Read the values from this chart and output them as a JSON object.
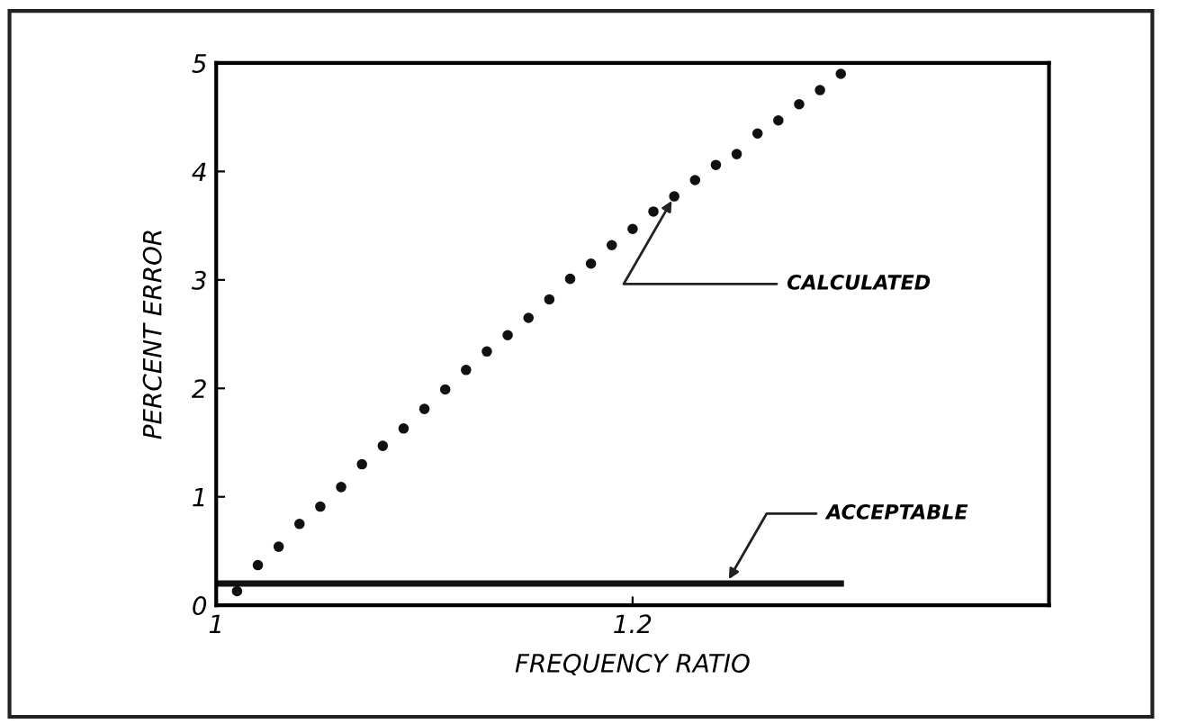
{
  "chart_data": {
    "type": "scatter",
    "xlabel": "FREQUENCY RATIO",
    "ylabel": "PERCENT ERROR",
    "xlim": [
      1,
      1.4
    ],
    "ylim": [
      0,
      5
    ],
    "xticks": [
      1,
      1.2
    ],
    "yticks": [
      0,
      1,
      2,
      3,
      4,
      5
    ],
    "grid": false,
    "legend": false,
    "series": [
      {
        "marker": "circle",
        "color": "#111111",
        "x": [
          1.01,
          1.02,
          1.03,
          1.04,
          1.05,
          1.06,
          1.07,
          1.08,
          1.09,
          1.1,
          1.11,
          1.12,
          1.13,
          1.14,
          1.15,
          1.16,
          1.17,
          1.18,
          1.19,
          1.2,
          1.21,
          1.22,
          1.23,
          1.24,
          1.25,
          1.26,
          1.27,
          1.28,
          1.29,
          1.3
        ],
        "values": [
          0.13,
          0.37,
          0.54,
          0.75,
          0.91,
          1.09,
          1.3,
          1.47,
          1.63,
          1.81,
          1.99,
          2.17,
          2.34,
          2.49,
          2.65,
          2.82,
          3.01,
          3.15,
          3.32,
          3.47,
          3.63,
          3.77,
          3.92,
          4.06,
          4.16,
          4.35,
          4.47,
          4.62,
          4.75,
          4.9
        ]
      },
      {
        "type": "line",
        "color": "#111111",
        "line_style": "solid",
        "x": [
          1,
          1.3
        ],
        "values": [
          0.2,
          0.2
        ]
      }
    ],
    "annotations": [
      {
        "text": "CALCULATED",
        "x": 1.22,
        "y": 3.77
      },
      {
        "text": "ACCEPTABLE",
        "x": 1.245,
        "y": 0.2
      }
    ]
  }
}
